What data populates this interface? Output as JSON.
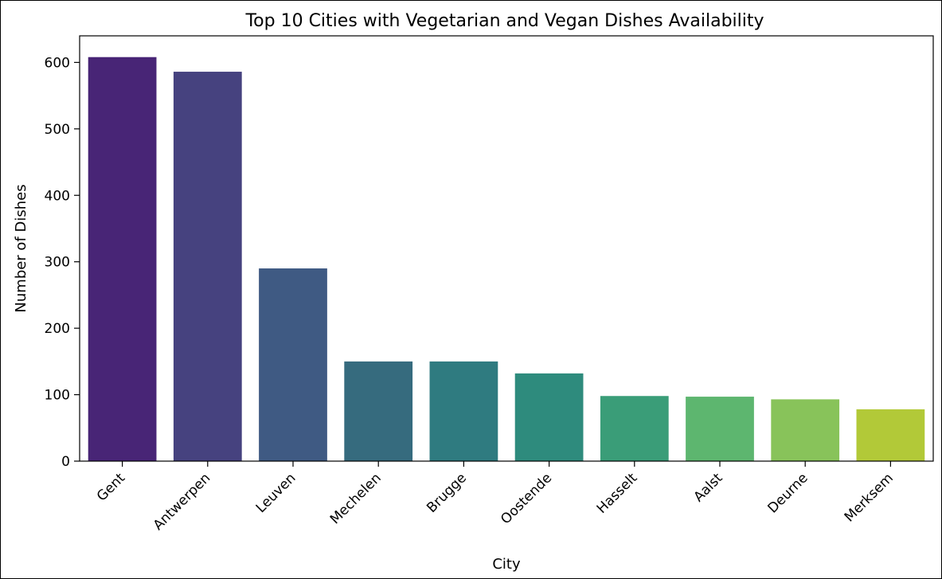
{
  "chart_data": {
    "type": "bar",
    "title": "Top 10 Cities with Vegetarian and Vegan Dishes Availability",
    "xlabel": "City",
    "ylabel": "Number of Dishes",
    "categories": [
      "Gent",
      "Antwerpen",
      "Leuven",
      "Mechelen",
      "Brugge",
      "Oostende",
      "Hasselt",
      "Aalst",
      "Deurne",
      "Merksem"
    ],
    "values": [
      608,
      586,
      290,
      150,
      150,
      132,
      98,
      97,
      93,
      78
    ],
    "ylim": [
      0,
      640
    ],
    "yticks": [
      0,
      100,
      200,
      300,
      400,
      500,
      600
    ],
    "ytick_labels": [
      "0",
      "100",
      "200",
      "300",
      "400",
      "500",
      "600"
    ],
    "colors": [
      "#482576",
      "#46427F",
      "#3F5A83",
      "#366B7E",
      "#2F7B80",
      "#2E8B7D",
      "#3A9D78",
      "#5DB66F",
      "#88C35A",
      "#B2C938"
    ],
    "grid": false,
    "legend": "none"
  }
}
